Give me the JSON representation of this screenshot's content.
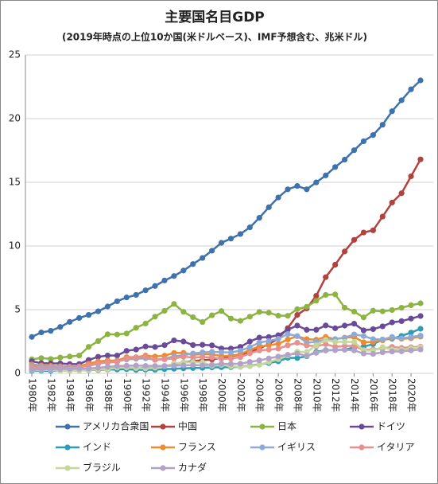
{
  "chart_data": {
    "type": "line",
    "title": "主要国名目GDP",
    "subtitle": "(2019年時点の上位10か国(米ドルベース)、IMF予想含む、兆米ドル)",
    "categories": [
      "1980年",
      null,
      "1982年",
      null,
      "1984年",
      null,
      "1986年",
      null,
      "1988年",
      null,
      "1990年",
      null,
      "1992年",
      null,
      "1994年",
      null,
      "1996年",
      null,
      "1998年",
      null,
      "2000年",
      null,
      "2002年",
      null,
      "2004年",
      null,
      "2006年",
      null,
      "2008年",
      null,
      "2010年",
      null,
      "2012年",
      null,
      "2014年",
      null,
      "2016年",
      null,
      "2018年",
      null,
      "2020年",
      null
    ],
    "ylim": [
      0,
      25
    ],
    "yticks": [
      0,
      5,
      10,
      15,
      20,
      25
    ],
    "grid": true,
    "series": [
      {
        "name": "アメリカ合衆国",
        "color": "#3f72ad",
        "values": [
          2.86,
          3.21,
          3.34,
          3.64,
          4.04,
          4.35,
          4.59,
          4.87,
          5.25,
          5.66,
          5.96,
          6.16,
          6.52,
          6.86,
          7.29,
          7.64,
          8.07,
          8.58,
          9.06,
          9.63,
          10.25,
          10.58,
          10.94,
          11.46,
          12.21,
          13.04,
          13.81,
          14.45,
          14.71,
          14.45,
          14.99,
          15.54,
          16.2,
          16.78,
          17.52,
          18.22,
          18.71,
          19.52,
          20.58,
          21.44,
          22.3,
          23.0
        ]
      },
      {
        "name": "中国",
        "color": "#b3423e",
        "values": [
          0.3,
          0.29,
          0.28,
          0.3,
          0.31,
          0.31,
          0.3,
          0.27,
          0.31,
          0.35,
          0.36,
          0.38,
          0.43,
          0.44,
          0.56,
          0.73,
          0.86,
          0.96,
          1.03,
          1.09,
          1.21,
          1.34,
          1.47,
          1.66,
          1.96,
          2.29,
          2.75,
          3.55,
          4.59,
          5.1,
          6.09,
          7.55,
          8.53,
          9.57,
          10.48,
          11.06,
          11.23,
          12.31,
          13.41,
          14.14,
          15.47,
          16.8
        ]
      },
      {
        "name": "日本",
        "color": "#8db443",
        "values": [
          1.1,
          1.2,
          1.13,
          1.24,
          1.32,
          1.4,
          2.08,
          2.53,
          3.07,
          3.05,
          3.13,
          3.58,
          3.91,
          4.45,
          4.91,
          5.45,
          4.83,
          4.41,
          4.03,
          4.56,
          4.89,
          4.3,
          4.12,
          4.45,
          4.82,
          4.76,
          4.53,
          4.52,
          5.04,
          5.23,
          5.7,
          6.16,
          6.2,
          5.16,
          4.85,
          4.39,
          4.92,
          4.87,
          4.97,
          5.15,
          5.35,
          5.5
        ]
      },
      {
        "name": "ドイツ",
        "color": "#6a4a98",
        "values": [
          0.95,
          0.8,
          0.78,
          0.78,
          0.73,
          0.73,
          1.05,
          1.3,
          1.4,
          1.4,
          1.77,
          1.87,
          2.11,
          2.07,
          2.21,
          2.59,
          2.5,
          2.22,
          2.24,
          2.2,
          1.95,
          1.95,
          2.08,
          2.5,
          2.81,
          2.85,
          2.99,
          3.43,
          3.75,
          3.42,
          3.42,
          3.76,
          3.54,
          3.75,
          3.9,
          3.38,
          3.47,
          3.69,
          4.0,
          4.1,
          4.3,
          4.5
        ]
      },
      {
        "name": "インド",
        "color": "#2f9cb6",
        "values": [
          0.19,
          0.2,
          0.2,
          0.22,
          0.21,
          0.23,
          0.25,
          0.28,
          0.3,
          0.3,
          0.33,
          0.27,
          0.29,
          0.28,
          0.33,
          0.36,
          0.39,
          0.42,
          0.43,
          0.47,
          0.48,
          0.49,
          0.51,
          0.6,
          0.7,
          0.81,
          0.94,
          1.22,
          1.2,
          1.34,
          1.68,
          1.82,
          1.83,
          1.86,
          2.04,
          2.1,
          2.29,
          2.65,
          2.72,
          2.94,
          3.2,
          3.5
        ]
      },
      {
        "name": "フランス",
        "color": "#ef8a2e",
        "values": [
          0.7,
          0.62,
          0.59,
          0.56,
          0.53,
          0.55,
          0.77,
          0.93,
          1.01,
          1.0,
          1.27,
          1.27,
          1.4,
          1.32,
          1.39,
          1.6,
          1.61,
          1.46,
          1.51,
          1.49,
          1.36,
          1.38,
          1.5,
          1.84,
          2.12,
          2.2,
          2.32,
          2.66,
          2.92,
          2.69,
          2.64,
          2.86,
          2.68,
          2.81,
          2.85,
          2.44,
          2.47,
          2.59,
          2.78,
          2.71,
          2.76,
          2.88
        ]
      },
      {
        "name": "イギリス",
        "color": "#8eaad6",
        "values": [
          0.6,
          0.56,
          0.52,
          0.49,
          0.46,
          0.49,
          0.6,
          0.75,
          0.91,
          0.93,
          1.09,
          1.14,
          1.18,
          1.06,
          1.14,
          1.34,
          1.42,
          1.56,
          1.65,
          1.69,
          1.66,
          1.64,
          1.78,
          2.06,
          2.42,
          2.54,
          2.71,
          3.09,
          2.93,
          2.41,
          2.48,
          2.66,
          2.7,
          2.79,
          3.06,
          2.93,
          2.69,
          2.66,
          2.86,
          2.74,
          2.85,
          2.96
        ]
      },
      {
        "name": "イタリア",
        "color": "#e8918c",
        "values": [
          0.48,
          0.43,
          0.43,
          0.44,
          0.44,
          0.45,
          0.63,
          0.78,
          0.85,
          0.89,
          1.18,
          1.24,
          1.32,
          1.06,
          1.1,
          1.17,
          1.31,
          1.24,
          1.27,
          1.25,
          1.14,
          1.16,
          1.27,
          1.57,
          1.8,
          1.86,
          1.94,
          2.2,
          2.4,
          2.19,
          2.13,
          2.29,
          2.09,
          2.14,
          2.16,
          1.83,
          1.88,
          1.95,
          2.08,
          2.0,
          2.05,
          2.1
        ]
      },
      {
        "name": "ブラジル",
        "color": "#c4d89c",
        "values": [
          0.24,
          0.26,
          0.28,
          0.2,
          0.2,
          0.22,
          0.27,
          0.3,
          0.33,
          0.45,
          0.46,
          0.41,
          0.39,
          0.44,
          0.56,
          0.77,
          0.85,
          0.88,
          0.86,
          0.6,
          0.66,
          0.56,
          0.51,
          0.56,
          0.67,
          0.89,
          1.11,
          1.4,
          1.7,
          1.67,
          2.21,
          2.62,
          2.47,
          2.47,
          2.46,
          1.8,
          1.8,
          2.06,
          1.87,
          1.85,
          1.96,
          2.05
        ]
      },
      {
        "name": "カナダ",
        "color": "#b3a2c8",
        "values": [
          0.27,
          0.31,
          0.32,
          0.34,
          0.35,
          0.36,
          0.38,
          0.43,
          0.51,
          0.57,
          0.6,
          0.61,
          0.59,
          0.58,
          0.58,
          0.6,
          0.63,
          0.65,
          0.63,
          0.67,
          0.74,
          0.74,
          0.76,
          0.9,
          1.02,
          1.17,
          1.32,
          1.46,
          1.55,
          1.37,
          1.61,
          1.79,
          1.83,
          1.85,
          1.8,
          1.56,
          1.53,
          1.65,
          1.71,
          1.73,
          1.8,
          1.87
        ]
      }
    ]
  }
}
